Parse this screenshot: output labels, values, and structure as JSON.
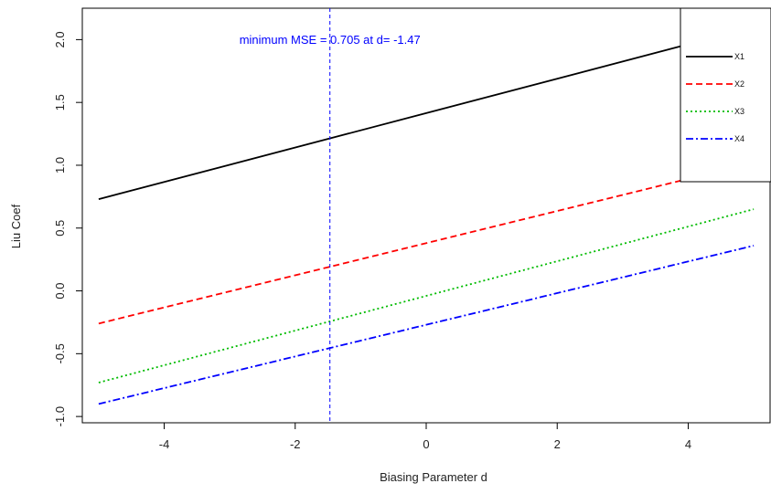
{
  "chart_data": {
    "type": "line",
    "title": "",
    "xlabel": "Biasing Parameter d",
    "ylabel": "Liu Coef",
    "xlim": [
      -5.25,
      5.25
    ],
    "ylim": [
      -1.05,
      2.25
    ],
    "xticks": [
      -4,
      -2,
      0,
      2,
      4
    ],
    "yticks": [
      -1.0,
      -0.5,
      0.0,
      0.5,
      1.0,
      1.5,
      2.0
    ],
    "xtick_labels": [
      "-4",
      "-2",
      "0",
      "2",
      "4"
    ],
    "ytick_labels": [
      "-1.0",
      "-0.5",
      "0.0",
      "0.5",
      "1.0",
      "1.5",
      "2.0"
    ],
    "grid": false,
    "legend_position": "top-right",
    "series": [
      {
        "name": "X1",
        "x": [
          -5,
          5
        ],
        "values": [
          0.73,
          2.1
        ],
        "color": "#000000",
        "style": "solid"
      },
      {
        "name": "X2",
        "x": [
          -5,
          5
        ],
        "values": [
          -0.26,
          1.02
        ],
        "color": "#ff0000",
        "style": "dashed"
      },
      {
        "name": "X3",
        "x": [
          -5,
          5
        ],
        "values": [
          -0.73,
          0.65
        ],
        "color": "#00bb00",
        "style": "dotted"
      },
      {
        "name": "X4",
        "x": [
          -5,
          5
        ],
        "values": [
          -0.9,
          0.36
        ],
        "color": "#0000ff",
        "style": "dashdot"
      }
    ],
    "vline": {
      "x": -1.47,
      "color": "#0000ff",
      "style": "dashed"
    },
    "annotation": {
      "text": "minimum MSE = 0.705 at d= -1.47",
      "x": -1.47,
      "color": "#0000ff"
    }
  }
}
